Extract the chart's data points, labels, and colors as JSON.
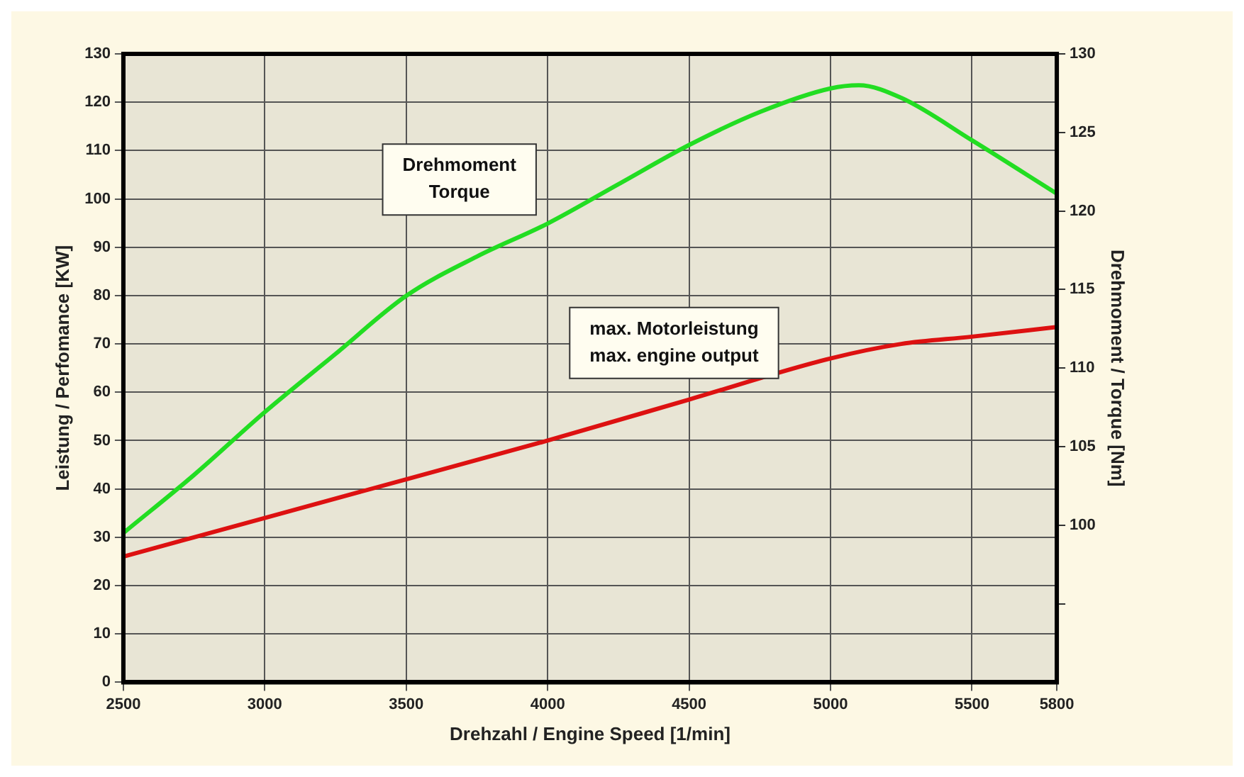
{
  "chart_data": {
    "type": "line",
    "xlabel": "Drehzahl / Engine Speed [1/min]",
    "ylabel": "Leistung / Perfomance [KW]",
    "y2label": "Drehmoment / Torque [Nm]",
    "xlim": [
      2500,
      5800
    ],
    "xticks": [
      2500,
      3000,
      3500,
      4000,
      4500,
      5000,
      5500,
      5800
    ],
    "ylim": [
      0,
      130
    ],
    "yticks": [
      0,
      10,
      20,
      30,
      40,
      50,
      60,
      70,
      80,
      90,
      100,
      110,
      120,
      130
    ],
    "y2lim": [
      90,
      130
    ],
    "y2ticks": [
      {
        "value": 95,
        "label": null
      },
      100,
      105,
      110,
      115,
      120,
      125,
      130
    ],
    "grid": true,
    "legend": false,
    "marker": "none",
    "line_style": "solid",
    "annotations": [
      "Drehmoment\nTorque",
      "max. Motorleistung\nmax. engine output"
    ],
    "series": [
      {
        "color": "#22dd22",
        "axis": "y2",
        "x": [
          2500,
          2750,
          3000,
          3250,
          3500,
          3750,
          4000,
          4250,
          4500,
          4750,
          5000,
          5100,
          5250,
          5500,
          5800
        ],
        "values": [
          99.5,
          103.2,
          107.2,
          110.9,
          114.6,
          117.1,
          119.2,
          121.7,
          124.2,
          126.3,
          127.8,
          128,
          127.2,
          124.5,
          121.1
        ]
      },
      {
        "color": "#dd1111",
        "x": [
          2500,
          3000,
          3500,
          4000,
          4500,
          5000,
          5250,
          5500,
          5800
        ],
        "values": [
          26,
          34,
          42,
          50,
          58.5,
          67,
          70,
          71.5,
          73.5
        ]
      }
    ]
  }
}
